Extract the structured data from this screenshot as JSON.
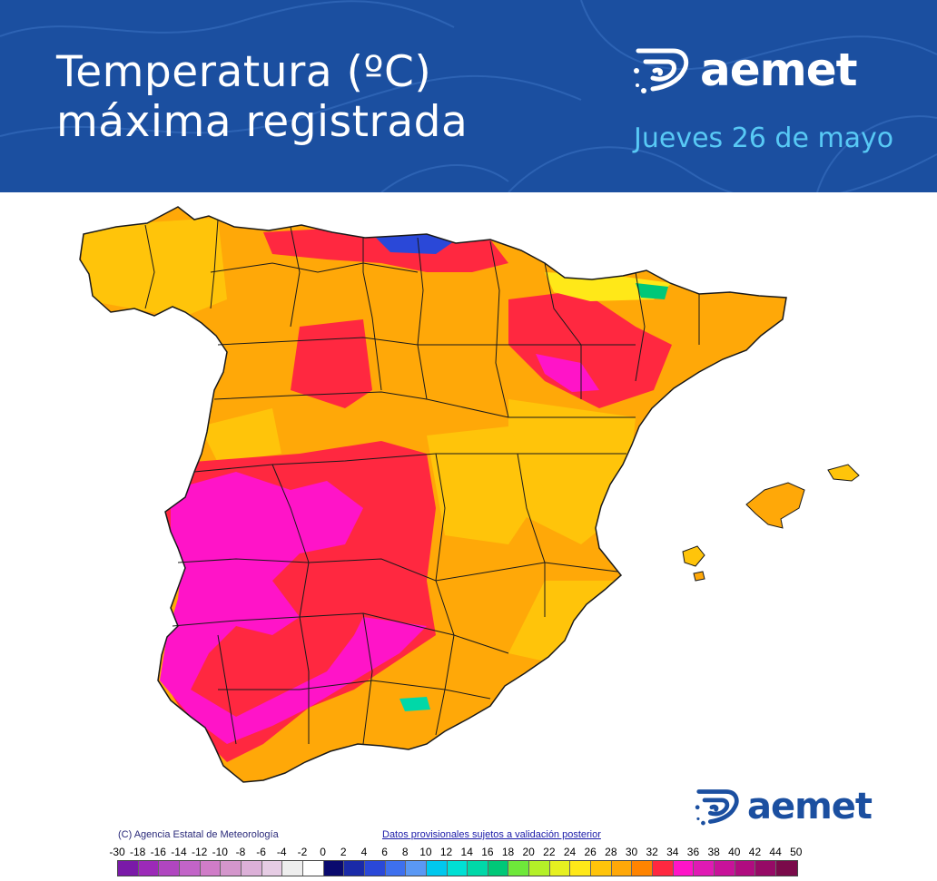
{
  "header": {
    "title_line1": "Temperatura (ºC)",
    "title_line2": "máxima registrada",
    "date": "Jueves 26 de mayo",
    "background_color": "#1b4fa0",
    "date_color": "#58c9f5"
  },
  "logo": {
    "word": "aemet",
    "icon": "aemet-swirl-logo-icon"
  },
  "footer": {
    "copyright": "(C) Agencia Estatal de Meteorología",
    "disclaimer": "Datos provisionales sujetos a validación posterior"
  },
  "legend": {
    "unit": "ºC",
    "labels": [
      "-30",
      "-18",
      "-16",
      "-14",
      "-12",
      "-10",
      "-8",
      "-6",
      "-4",
      "-2",
      "0",
      "2",
      "4",
      "6",
      "8",
      "10",
      "12",
      "14",
      "16",
      "18",
      "20",
      "22",
      "24",
      "26",
      "28",
      "30",
      "32",
      "34",
      "36",
      "38",
      "40",
      "42",
      "44",
      "50"
    ],
    "colors": [
      "#7a1aa8",
      "#9c2ab8",
      "#b046c0",
      "#c264c8",
      "#d07cc8",
      "#d496cc",
      "#dcb0d8",
      "#e6cce4",
      "#eeeeee",
      "#ffffff",
      "#0a0a6e",
      "#1a2aa8",
      "#2a48d8",
      "#3e70ee",
      "#5a98f4",
      "#00c8ee",
      "#00e0d4",
      "#00d8a8",
      "#00c878",
      "#6ee83a",
      "#b4f028",
      "#e6f020",
      "#ffe818",
      "#ffc40a",
      "#ffa808",
      "#ff8400",
      "#ff2840",
      "#ff14c8",
      "#e01ab4",
      "#c8129a",
      "#b00c80",
      "#960a66",
      "#7a0a4a"
    ]
  },
  "map": {
    "region": "Península Ibérica (España) y Baleares",
    "variable": "temperatura máxima registrada",
    "dominant_colors": {
      "orange_28_30": "#ffa808",
      "yellow_26": "#ffc40a",
      "red_32_34": "#ff2840",
      "magenta_34_36": "#ff14c8"
    }
  }
}
